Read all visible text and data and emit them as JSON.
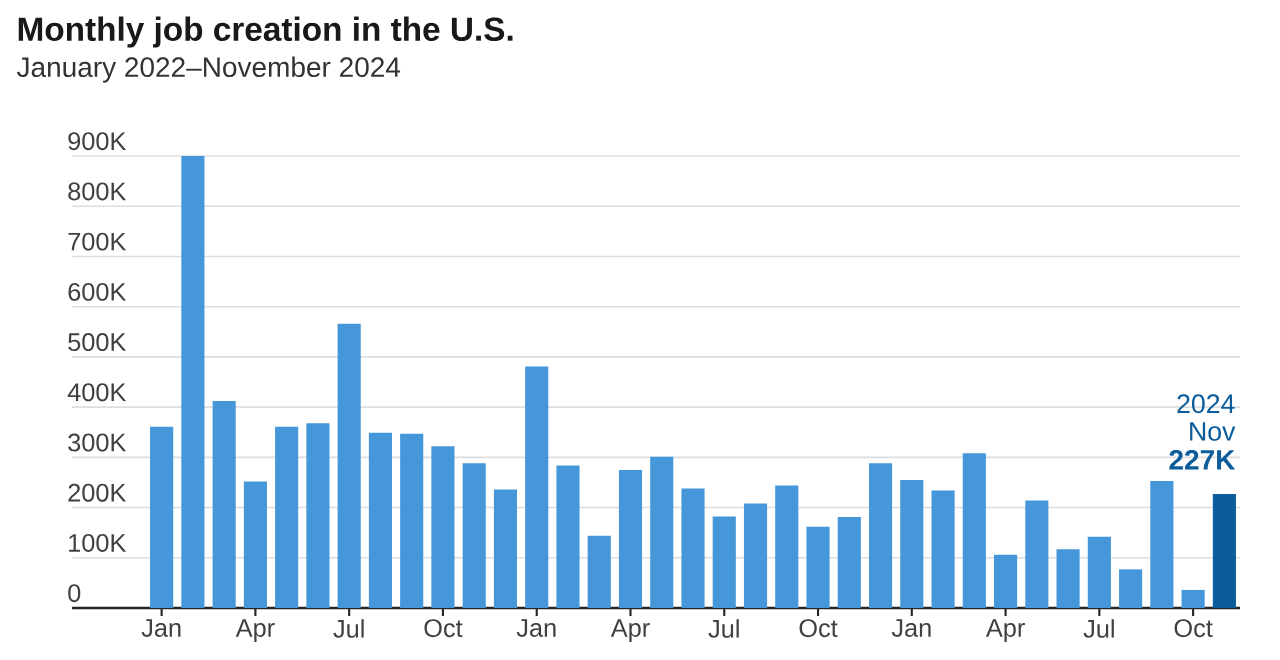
{
  "chart_data": {
    "type": "bar",
    "title": "Monthly job creation in the U.S.",
    "subtitle": "January 2022–November 2024",
    "categories": [
      "Jan",
      null,
      null,
      "Apr",
      null,
      null,
      "Jul",
      null,
      null,
      "Oct",
      null,
      null,
      "Jan",
      null,
      null,
      "Apr",
      null,
      null,
      "Jul",
      null,
      null,
      "Oct",
      null,
      null,
      "Jan",
      null,
      null,
      "Apr",
      null,
      null,
      "Jul",
      null,
      null,
      "Oct",
      null
    ],
    "values": [
      361,
      900,
      412,
      252,
      361,
      368,
      566,
      349,
      347,
      322,
      288,
      236,
      481,
      284,
      144,
      275,
      301,
      238,
      182,
      208,
      244,
      162,
      181,
      288,
      255,
      234,
      308,
      106,
      214,
      117,
      142,
      77,
      253,
      36,
      227
    ],
    "colors": [
      "#4597d9",
      "#4597d9",
      "#4597d9",
      "#4597d9",
      "#4597d9",
      "#4597d9",
      "#4597d9",
      "#4597d9",
      "#4597d9",
      "#4597d9",
      "#4597d9",
      "#4597d9",
      "#4597d9",
      "#4597d9",
      "#4597d9",
      "#4597d9",
      "#4597d9",
      "#4597d9",
      "#4597d9",
      "#4597d9",
      "#4597d9",
      "#4597d9",
      "#4597d9",
      "#4597d9",
      "#4597d9",
      "#4597d9",
      "#4597d9",
      "#4597d9",
      "#4597d9",
      "#4597d9",
      "#4597d9",
      "#4597d9",
      "#4597d9",
      "#4597d9",
      "#0b5c9b"
    ],
    "value_labels": [
      null,
      null,
      null,
      null,
      null,
      null,
      null,
      null,
      null,
      null,
      null,
      null,
      null,
      null,
      null,
      null,
      null,
      null,
      null,
      null,
      null,
      null,
      null,
      null,
      null,
      null,
      null,
      null,
      null,
      null,
      null,
      null,
      null,
      null,
      "227K"
    ],
    "annotations": [
      "2024",
      "Nov"
    ],
    "ylim": [
      0,
      900
    ],
    "yticks": [
      {
        "value": 0,
        "label": "0"
      },
      {
        "value": 100,
        "label": "100K"
      },
      {
        "value": 200,
        "label": "200K"
      },
      {
        "value": 300,
        "label": "300K"
      },
      {
        "value": 400,
        "label": "400K"
      },
      {
        "value": 500,
        "label": "500K"
      },
      {
        "value": 600,
        "label": "600K"
      },
      {
        "value": 700,
        "label": "700K"
      },
      {
        "value": 800,
        "label": "800K"
      },
      {
        "value": 900,
        "label": "900K"
      }
    ],
    "grid": "y"
  }
}
